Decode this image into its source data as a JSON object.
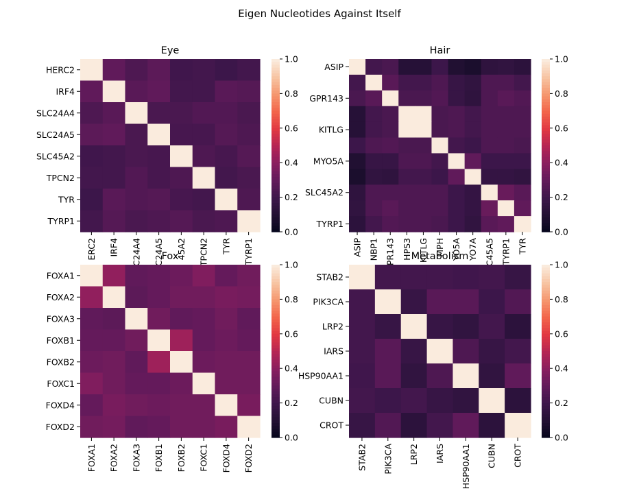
{
  "figure": {
    "title": "Eigen Nucleotides Against Itself"
  },
  "colorbar": {
    "ticks": [
      "0.0",
      "0.2",
      "0.4",
      "0.6",
      "0.8",
      "1.0"
    ],
    "range": [
      0,
      1
    ],
    "colormap": "rocket"
  },
  "chart_data": [
    {
      "type": "heatmap",
      "title": "Eye",
      "row_labels": [
        "HERC2",
        "IRF4",
        "SLC24A4",
        "SLC24A5",
        "SLC45A2",
        "TPCN2",
        "TYR",
        "TYRP1"
      ],
      "col_labels": [
        "ERC2",
        "IRF4",
        "C24A4",
        "C24A5",
        "45A2",
        "TPCN2",
        "TYR",
        "TYRP1"
      ],
      "vlim": [
        0,
        1
      ],
      "values": [
        [
          1.0,
          0.3,
          0.25,
          0.29,
          0.21,
          0.22,
          0.2,
          0.22
        ],
        [
          0.3,
          1.0,
          0.28,
          0.3,
          0.22,
          0.22,
          0.28,
          0.27
        ],
        [
          0.25,
          0.28,
          1.0,
          0.24,
          0.24,
          0.26,
          0.26,
          0.24
        ],
        [
          0.29,
          0.3,
          0.24,
          1.0,
          0.23,
          0.23,
          0.27,
          0.25
        ],
        [
          0.21,
          0.22,
          0.24,
          0.23,
          1.0,
          0.25,
          0.23,
          0.27
        ],
        [
          0.22,
          0.22,
          0.26,
          0.23,
          0.25,
          1.0,
          0.22,
          0.24
        ],
        [
          0.2,
          0.28,
          0.26,
          0.27,
          0.23,
          0.22,
          1.0,
          0.25
        ],
        [
          0.22,
          0.27,
          0.24,
          0.25,
          0.27,
          0.24,
          0.25,
          1.0
        ]
      ]
    },
    {
      "type": "heatmap",
      "title": "Hair",
      "row_labels": [
        "ASIP",
        "GPR143",
        "KITLG",
        "MYO5A",
        "SLC45A2",
        "TYRP1"
      ],
      "row_label_positions": [
        0,
        2,
        4,
        6,
        8,
        10
      ],
      "col_labels": [
        "ASIP",
        "NBP1",
        "PR143",
        "HPS3",
        "KITLG",
        "MPH",
        "YO5A",
        "YO7A",
        "C45A5",
        "TYRP1",
        "TYR"
      ],
      "vlim": [
        0,
        1
      ],
      "values": [
        [
          1.0,
          0.22,
          0.24,
          0.12,
          0.12,
          0.2,
          0.1,
          0.08,
          0.15,
          0.16,
          0.14
        ],
        [
          0.22,
          1.0,
          0.28,
          0.22,
          0.22,
          0.25,
          0.18,
          0.16,
          0.25,
          0.25,
          0.22
        ],
        [
          0.24,
          0.28,
          1.0,
          0.24,
          0.24,
          0.26,
          0.18,
          0.15,
          0.25,
          0.28,
          0.26
        ],
        [
          0.12,
          0.22,
          0.24,
          1.0,
          1.0,
          0.24,
          0.25,
          0.22,
          0.25,
          0.25,
          0.25
        ],
        [
          0.12,
          0.22,
          0.24,
          1.0,
          1.0,
          0.24,
          0.25,
          0.22,
          0.25,
          0.25,
          0.25
        ],
        [
          0.2,
          0.25,
          0.26,
          0.24,
          0.24,
          1.0,
          0.22,
          0.2,
          0.25,
          0.25,
          0.24
        ],
        [
          0.1,
          0.18,
          0.18,
          0.25,
          0.25,
          0.22,
          1.0,
          0.3,
          0.2,
          0.2,
          0.2
        ],
        [
          0.08,
          0.16,
          0.15,
          0.22,
          0.22,
          0.2,
          0.3,
          1.0,
          0.17,
          0.17,
          0.16
        ],
        [
          0.15,
          0.25,
          0.25,
          0.25,
          0.25,
          0.25,
          0.2,
          0.17,
          1.0,
          0.32,
          0.28
        ],
        [
          0.16,
          0.25,
          0.28,
          0.25,
          0.25,
          0.25,
          0.2,
          0.17,
          0.32,
          1.0,
          0.3
        ],
        [
          0.14,
          0.22,
          0.26,
          0.25,
          0.25,
          0.24,
          0.2,
          0.16,
          0.28,
          0.3,
          1.0
        ]
      ]
    },
    {
      "type": "heatmap",
      "title": "Fox",
      "row_labels": [
        "FOXA1",
        "FOXA2",
        "FOXA3",
        "FOXB1",
        "FOXB2",
        "FOXC1",
        "FOXD4",
        "FOXD2"
      ],
      "col_labels": [
        "FOXA1",
        "FOXA2",
        "FOXA3",
        "FOXB1",
        "FOXB2",
        "FOXC1",
        "FOXD4",
        "FOXD2"
      ],
      "vlim": [
        0,
        1
      ],
      "values": [
        [
          1.0,
          0.42,
          0.3,
          0.31,
          0.33,
          0.38,
          0.31,
          0.34
        ],
        [
          0.42,
          1.0,
          0.29,
          0.31,
          0.34,
          0.34,
          0.36,
          0.35
        ],
        [
          0.3,
          0.29,
          1.0,
          0.34,
          0.3,
          0.31,
          0.34,
          0.3
        ],
        [
          0.31,
          0.31,
          0.34,
          1.0,
          0.45,
          0.31,
          0.33,
          0.31
        ],
        [
          0.33,
          0.34,
          0.3,
          0.45,
          1.0,
          0.33,
          0.34,
          0.34
        ],
        [
          0.38,
          0.34,
          0.31,
          0.31,
          0.33,
          1.0,
          0.34,
          0.34
        ],
        [
          0.31,
          0.36,
          0.34,
          0.33,
          0.34,
          0.34,
          1.0,
          0.36
        ],
        [
          0.34,
          0.35,
          0.3,
          0.31,
          0.34,
          0.34,
          0.36,
          1.0
        ]
      ]
    },
    {
      "type": "heatmap",
      "title": "Metabolism",
      "row_labels": [
        "STAB2",
        "PIK3CA",
        "LRP2",
        "IARS",
        "HSP90AA1",
        "CUBN",
        "CROT"
      ],
      "col_labels": [
        "STAB2",
        "PIK3CA",
        "LRP2",
        "IARS",
        "HSP90AA1",
        "CUBN",
        "CROT"
      ],
      "vlim": [
        0,
        1
      ],
      "values": [
        [
          1.0,
          0.22,
          0.22,
          0.22,
          0.21,
          0.22,
          0.18
        ],
        [
          0.22,
          1.0,
          0.18,
          0.28,
          0.28,
          0.2,
          0.26
        ],
        [
          0.22,
          0.18,
          1.0,
          0.18,
          0.16,
          0.22,
          0.14
        ],
        [
          0.22,
          0.28,
          0.18,
          1.0,
          0.25,
          0.18,
          0.22
        ],
        [
          0.21,
          0.28,
          0.16,
          0.25,
          1.0,
          0.16,
          0.3
        ],
        [
          0.22,
          0.2,
          0.22,
          0.18,
          0.16,
          1.0,
          0.14
        ],
        [
          0.18,
          0.26,
          0.14,
          0.22,
          0.3,
          0.14,
          1.0
        ]
      ]
    }
  ]
}
